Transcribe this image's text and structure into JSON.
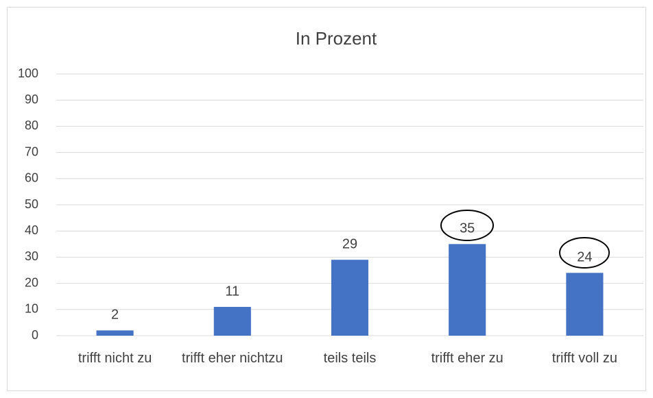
{
  "chart_data": {
    "type": "bar",
    "title": "In Prozent",
    "categories": [
      "trifft nicht zu",
      "trifft eher nichtzu",
      "teils teils",
      "trifft eher zu",
      "trifft voll zu"
    ],
    "values": [
      2,
      11,
      29,
      35,
      24
    ],
    "color": "#4472c4",
    "ylim": [
      0,
      100
    ],
    "yticks": [
      0,
      10,
      20,
      30,
      40,
      50,
      60,
      70,
      80,
      90,
      100
    ],
    "grid": true
  }
}
